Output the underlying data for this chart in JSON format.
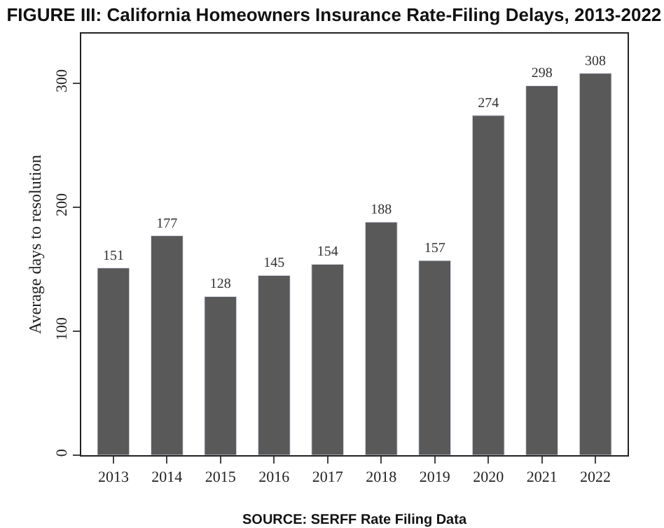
{
  "chart_data": {
    "type": "bar",
    "title": "FIGURE III: California Homeowners Insurance Rate-Filing Delays, 2013-2022",
    "ylabel": "Average days to resolution",
    "categories": [
      "2013",
      "2014",
      "2015",
      "2016",
      "2017",
      "2018",
      "2019",
      "2020",
      "2021",
      "2022"
    ],
    "values": [
      151,
      177,
      128,
      145,
      154,
      188,
      157,
      274,
      298,
      308
    ],
    "color": "#595959",
    "data_labels": true,
    "ylim": [
      0,
      340
    ],
    "yticks": [
      0,
      100,
      200,
      300
    ],
    "annotations": [
      "SOURCE: SERFF Rate Filing Data"
    ]
  }
}
